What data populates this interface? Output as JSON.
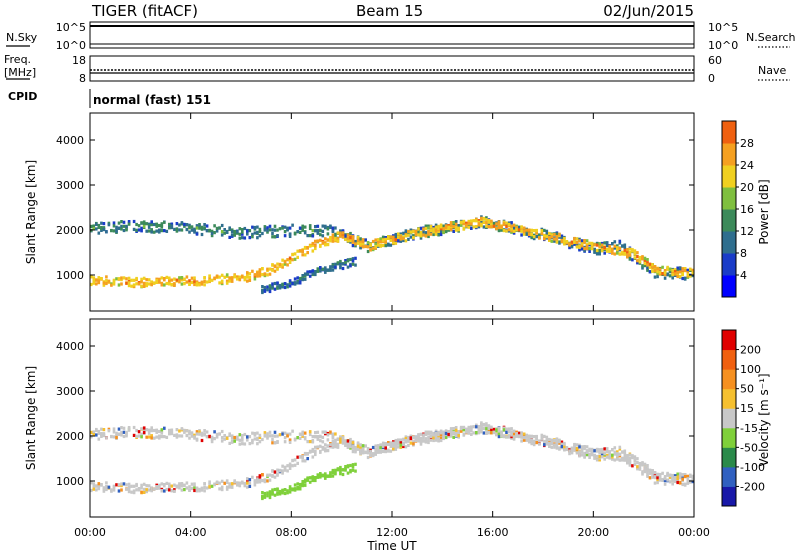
{
  "header": {
    "radar": "TIGER (fitACF)",
    "beam": "Beam 15",
    "date": "02/Jun/2015"
  },
  "nsky_panel": {
    "left_label": "N.Sky",
    "right_label": "N.Search",
    "left_ticks": [
      "10^5",
      "10^0"
    ],
    "right_ticks": [
      "10^5",
      "10^0"
    ]
  },
  "freq_panel": {
    "left_label_line1": "Freq.",
    "left_label_line2": "[MHz]",
    "right_label": "Nave",
    "left_ticks": [
      "18",
      "8"
    ],
    "right_ticks": [
      "60",
      "0"
    ]
  },
  "cpid_panel": {
    "label": "CPID",
    "program": "normal (fast) 151"
  },
  "chart_data": [
    {
      "type": "heatmap",
      "title": "",
      "ylabel": "Slant Range [km]",
      "xlabel": "",
      "ylim": [
        200,
        4600
      ],
      "y_ticks": [
        "1000",
        "2000",
        "3000",
        "4000"
      ],
      "colorbar": {
        "label": "Power [dB]",
        "ticks": [
          "4",
          "8",
          "12",
          "16",
          "20",
          "24",
          "28"
        ],
        "range": [
          0,
          30
        ],
        "colors": [
          "#0000ff",
          "#1a3cc8",
          "#2f6e8e",
          "#3c8a5a",
          "#7fbf3f",
          "#f0d020",
          "#f5a020",
          "#ef6010",
          "#e00000"
        ]
      },
      "bands": [
        {
          "name": "",
          "center_km": [
            [
              0,
              2050
            ],
            [
              2,
              2100
            ],
            [
              4,
              2050
            ],
            [
              6,
              1950
            ],
            [
              8,
              2000
            ],
            [
              9.5,
              2000
            ],
            [
              11,
              1650
            ],
            [
              13,
              1950
            ],
            [
              15.5,
              2200
            ],
            [
              18,
              1900
            ],
            [
              20,
              1600
            ],
            [
              21,
              1650
            ],
            [
              22.5,
              1050
            ],
            [
              24,
              1050
            ]
          ],
          "width_km": 250,
          "power_db": 10
        },
        {
          "name": "",
          "center_km": [
            [
              0,
              900
            ],
            [
              2,
              850
            ],
            [
              4,
              880
            ],
            [
              6,
              950
            ],
            [
              7,
              1100
            ],
            [
              8,
              1400
            ],
            [
              9,
              1700
            ],
            [
              10,
              1900
            ],
            [
              11,
              1650
            ],
            [
              13,
              1950
            ],
            [
              15.5,
              2200
            ],
            [
              18,
              1900
            ],
            [
              20,
              1650
            ],
            [
              21.5,
              1500
            ],
            [
              22.5,
              1100
            ],
            [
              24,
              1050
            ]
          ],
          "width_km": 200,
          "power_db": 22
        },
        {
          "name": "",
          "center_km": [
            [
              6.8,
              700
            ],
            [
              8,
              850
            ],
            [
              9,
              1100
            ],
            [
              10,
              1250
            ],
            [
              10.5,
              1300
            ]
          ],
          "width_km": 180,
          "power_db": 9
        }
      ]
    },
    {
      "type": "heatmap",
      "title": "",
      "ylabel": "Slant Range [km]",
      "xlabel": "Time UT",
      "ylim": [
        200,
        4600
      ],
      "y_ticks": [
        "1000",
        "2000",
        "3000",
        "4000"
      ],
      "x_ticks": [
        "00:00",
        "04:00",
        "08:00",
        "12:00",
        "16:00",
        "20:00",
        "00:00"
      ],
      "xlim": [
        0,
        24
      ],
      "colorbar": {
        "label": "Velocity [m s⁻¹]",
        "ticks": [
          "200",
          "100",
          "50",
          "15",
          "-15",
          "-50",
          "-100",
          "-200"
        ],
        "colors": [
          "#1818a8",
          "#3060c0",
          "#2a8a4a",
          "#7fd03a",
          "#c8c8c8",
          "#f5c030",
          "#f59020",
          "#f06010",
          "#e00000"
        ]
      }
    }
  ]
}
